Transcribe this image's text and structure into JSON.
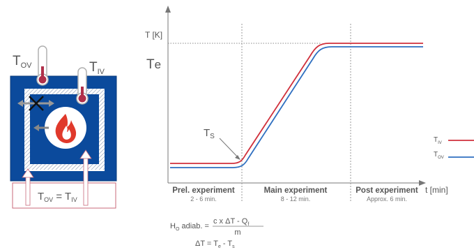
{
  "apparatus": {
    "t_ov_main": "T",
    "t_ov_sub": "OV",
    "t_iv_main": "T",
    "t_iv_sub": "IV",
    "eq_t1": "T",
    "eq_t1_sub": "OV",
    "eq_sign": " = ",
    "eq_t2": "T",
    "eq_t2_sub": "IV"
  },
  "chart": {
    "y_label": "T [K]",
    "te_main": "T",
    "te_sub": "e",
    "ts_main": "T",
    "ts_sub": "S",
    "x_label": "t [min]",
    "phases": [
      {
        "name": "Prel. experiment",
        "duration": "2 - 6 min."
      },
      {
        "name": "Main experiment",
        "duration": "8 - 12 min."
      },
      {
        "name": "Post experiment",
        "duration": "Approx. 6 min."
      }
    ],
    "legend": [
      {
        "main": "T",
        "sub": "IV",
        "color": "#d0303c"
      },
      {
        "main": "T",
        "sub": "OV",
        "color": "#2f6fc0"
      }
    ]
  },
  "formula": {
    "h_main": "H",
    "h_sub": "O",
    "h_rest": " adiab. =",
    "numerator": "c x ΔT - Q",
    "numerator_sub": "f",
    "denominator": "m",
    "dt_prefix": "ΔT = T",
    "dt_sub1": "e",
    "dt_mid": " - T",
    "dt_sub2": "s"
  }
}
